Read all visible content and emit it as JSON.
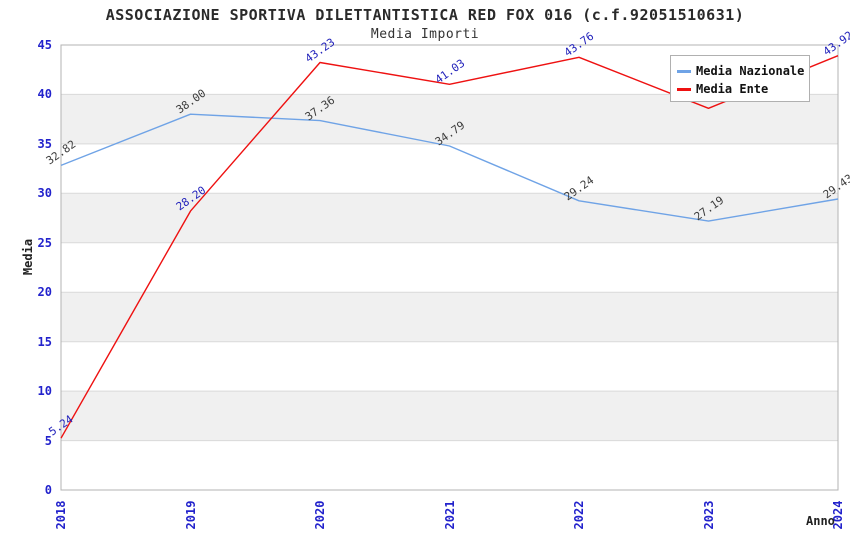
{
  "header": {
    "title": "ASSOCIAZIONE SPORTIVA DILETTANTISTICA RED FOX 016 (c.f.92051510631)",
    "subtitle": "Media Importi"
  },
  "chart_data": {
    "type": "line",
    "x": [
      "2018",
      "2019",
      "2020",
      "2021",
      "2022",
      "2023",
      "2024"
    ],
    "xlabel": "Anno",
    "ylabel": "Media",
    "ylim": [
      0,
      45
    ],
    "ytick_step": 5,
    "yticks": [
      0,
      5,
      10,
      15,
      20,
      25,
      30,
      35,
      40,
      45
    ],
    "grid": "horizontal-alternating-bands",
    "legend_position": "top-right",
    "series": [
      {
        "name": "Media Nazionale",
        "color": "#6fa3e6",
        "label_color": "#3c3c3c",
        "values": [
          32.82,
          38.0,
          37.36,
          34.79,
          29.24,
          27.19,
          29.43
        ],
        "labels": [
          "32.82",
          "38.00",
          "37.36",
          "34.79",
          "29.24",
          "27.19",
          "29.43"
        ]
      },
      {
        "name": "Media Ente",
        "color": "#ee1111",
        "label_color": "#2222bb",
        "values": [
          5.24,
          28.2,
          43.23,
          41.03,
          43.76,
          38.6,
          43.92
        ],
        "labels": [
          "5.24",
          "28.20",
          "43.23",
          "41.03",
          "43.76",
          null,
          "43.92"
        ]
      }
    ],
    "colors": {
      "tick_label": "#2222cc",
      "band_light": "#ffffff",
      "band_dark": "#f0f0f0",
      "gridline": "#d9d9d9",
      "border": "#b3b3b3"
    }
  }
}
